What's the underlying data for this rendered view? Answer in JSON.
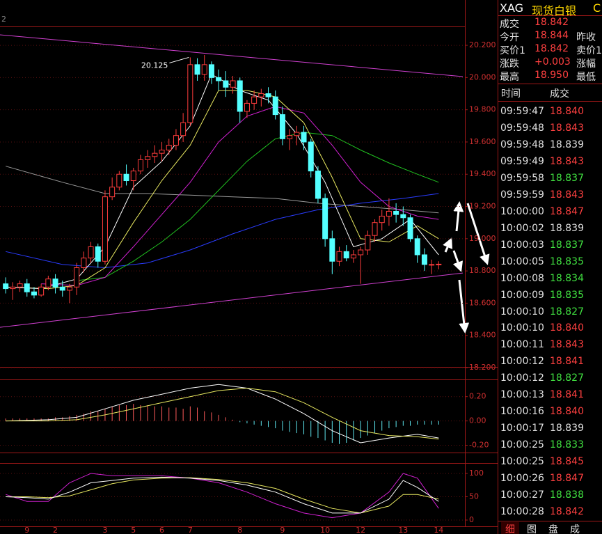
{
  "top_label": "2",
  "chart_data": [
    {
      "type": "candlestick",
      "xlim": [
        -0.8,
        64.4
      ],
      "ylim": [
        18.2,
        20.317
      ],
      "grid": true,
      "up_color": "#ff3c3c",
      "down_color": "#54ffff",
      "yticks": [
        {
          "value": 20.2,
          "label": "20.200"
        },
        {
          "value": 20.0,
          "label": "20.000"
        },
        {
          "value": 19.8,
          "label": "19.800"
        },
        {
          "value": 19.6,
          "label": "19.600"
        },
        {
          "value": 19.4,
          "label": "19.400"
        },
        {
          "value": 19.2,
          "label": "19.200"
        },
        {
          "value": 19.0,
          "label": "19.000"
        },
        {
          "value": 18.8,
          "label": "18.800"
        },
        {
          "value": 18.6,
          "label": "18.600"
        },
        {
          "value": 18.4,
          "label": "18.400"
        },
        {
          "value": 18.2,
          "label": "18.200"
        }
      ],
      "categories": [
        null,
        null,
        null,
        "9",
        null,
        null,
        null,
        "2",
        null,
        null,
        null,
        null,
        null,
        null,
        "3",
        null,
        null,
        null,
        "5",
        null,
        null,
        null,
        "6",
        null,
        null,
        null,
        "7",
        null,
        null,
        null,
        null,
        null,
        null,
        "8",
        null,
        null,
        null,
        null,
        null,
        "9",
        null,
        null,
        null,
        null,
        null,
        "10",
        null,
        null,
        null,
        null,
        "12",
        null,
        null,
        null,
        null,
        null,
        "13",
        null,
        null,
        null,
        null,
        "14"
      ],
      "open": [
        18.72,
        18.69,
        18.7,
        18.72,
        18.67,
        18.65,
        18.7,
        18.75,
        18.7,
        18.68,
        18.7,
        18.82,
        18.88,
        18.95,
        18.86,
        19.26,
        19.32,
        19.4,
        19.36,
        19.42,
        19.49,
        19.51,
        19.53,
        19.55,
        19.58,
        19.64,
        19.72,
        20.08,
        20.02,
        20.08,
        20.0,
        19.98,
        19.94,
        19.98,
        19.79,
        19.84,
        19.88,
        19.9,
        19.88,
        19.77,
        19.62,
        19.64,
        19.66,
        19.6,
        19.42,
        19.25,
        19.0,
        18.86,
        18.92,
        18.88,
        18.9,
        18.93,
        19.02,
        19.1,
        19.14,
        19.17,
        19.15,
        19.13,
        19.0,
        18.9,
        18.84,
        18.84
      ],
      "high": [
        18.76,
        18.73,
        18.74,
        18.75,
        18.7,
        18.72,
        18.77,
        18.78,
        18.74,
        18.72,
        18.85,
        18.92,
        18.98,
        18.97,
        19.3,
        19.38,
        19.42,
        19.46,
        19.44,
        19.52,
        19.55,
        19.58,
        19.6,
        19.62,
        19.68,
        19.78,
        20.125,
        20.12,
        20.14,
        20.1,
        20.05,
        20.04,
        20.01,
        20.0,
        19.86,
        19.92,
        19.93,
        19.94,
        19.92,
        19.82,
        19.68,
        19.7,
        19.7,
        19.62,
        19.45,
        19.28,
        19.05,
        18.95,
        18.96,
        18.93,
        18.95,
        19.05,
        19.12,
        19.18,
        19.25,
        19.22,
        19.2,
        19.15,
        19.02,
        18.94,
        18.87,
        18.86
      ],
      "low": [
        18.66,
        18.62,
        18.67,
        18.64,
        18.63,
        18.64,
        18.68,
        18.66,
        18.64,
        18.6,
        18.65,
        18.79,
        18.85,
        18.82,
        18.84,
        19.24,
        19.3,
        19.33,
        19.3,
        19.4,
        19.44,
        19.47,
        19.48,
        19.52,
        19.55,
        19.6,
        19.7,
        19.98,
        19.98,
        19.96,
        19.92,
        19.88,
        19.9,
        19.72,
        19.75,
        19.8,
        19.82,
        19.84,
        19.74,
        19.58,
        19.55,
        19.58,
        19.55,
        19.38,
        19.22,
        18.95,
        18.78,
        18.83,
        18.86,
        18.85,
        18.72,
        18.9,
        18.98,
        19.05,
        19.08,
        19.1,
        19.08,
        18.98,
        18.85,
        18.8,
        18.78,
        18.81
      ],
      "close": [
        18.69,
        18.7,
        18.72,
        18.67,
        18.65,
        18.7,
        18.75,
        18.7,
        18.68,
        18.7,
        18.82,
        18.88,
        18.95,
        18.86,
        19.26,
        19.32,
        19.4,
        19.36,
        19.42,
        19.49,
        19.51,
        19.53,
        19.55,
        19.58,
        19.64,
        19.72,
        20.08,
        20.02,
        20.08,
        20.0,
        19.98,
        19.94,
        19.98,
        19.79,
        19.84,
        19.88,
        19.9,
        19.88,
        19.77,
        19.62,
        19.64,
        19.66,
        19.6,
        19.42,
        19.25,
        19.0,
        18.86,
        18.92,
        18.88,
        18.9,
        18.93,
        19.02,
        19.1,
        19.14,
        19.17,
        19.15,
        19.13,
        19.0,
        18.9,
        18.84,
        18.84,
        18.842
      ],
      "annotations": [
        {
          "text": "20.125",
          "x": 26,
          "y": 20.125
        }
      ],
      "series": [
        {
          "color": "#d040d0",
          "x": [
            -0.8,
            64.4
          ],
          "values": [
            20.265,
            20.006
          ]
        },
        {
          "color": "#d040d0",
          "x": [
            -0.8,
            64.4
          ],
          "values": [
            18.45,
            18.787
          ]
        },
        {
          "color": "#9a9a9a",
          "x": [
            0,
            8,
            14,
            20,
            26,
            32,
            38,
            44,
            50,
            56,
            61
          ],
          "values": [
            19.45,
            19.35,
            19.28,
            19.28,
            19.27,
            19.26,
            19.25,
            19.22,
            19.2,
            19.18,
            19.16
          ]
        },
        {
          "color": "#2a3cff",
          "x": [
            0,
            8,
            14,
            20,
            26,
            32,
            38,
            44,
            50,
            56,
            61
          ],
          "values": [
            18.92,
            18.84,
            18.82,
            18.85,
            18.93,
            19.03,
            19.12,
            19.18,
            19.22,
            19.25,
            19.28
          ]
        },
        {
          "color": "#20c020",
          "x": [
            10,
            14,
            18,
            22,
            26,
            30,
            34,
            38,
            42,
            46,
            50,
            54,
            58,
            61
          ],
          "values": [
            18.74,
            18.76,
            18.86,
            18.98,
            19.12,
            19.3,
            19.48,
            19.62,
            19.66,
            19.64,
            19.55,
            19.47,
            19.4,
            19.35
          ]
        },
        {
          "color": "#d020d0",
          "x": [
            5,
            10,
            14,
            18,
            22,
            26,
            30,
            34,
            38,
            42,
            46,
            50,
            54,
            58,
            61
          ],
          "values": [
            18.72,
            18.71,
            18.76,
            18.95,
            19.15,
            19.35,
            19.6,
            19.76,
            19.82,
            19.78,
            19.58,
            19.35,
            19.2,
            19.14,
            19.12
          ]
        },
        {
          "color": "#e8e860",
          "x": [
            0,
            6,
            10,
            14,
            18,
            22,
            26,
            30,
            34,
            38,
            42,
            46,
            50,
            54,
            58,
            61
          ],
          "values": [
            18.7,
            18.69,
            18.71,
            18.82,
            19.1,
            19.36,
            19.58,
            19.92,
            19.92,
            19.88,
            19.72,
            19.38,
            19.0,
            18.98,
            19.08,
            19.0
          ]
        },
        {
          "color": "#ffffff",
          "x": [
            0,
            5,
            10,
            14,
            18,
            22,
            26,
            29,
            33,
            37,
            41,
            45,
            49,
            53,
            57,
            61
          ],
          "values": [
            18.7,
            18.69,
            18.75,
            18.95,
            19.32,
            19.48,
            19.7,
            20.02,
            19.92,
            19.86,
            19.65,
            19.35,
            18.95,
            19.0,
            19.12,
            18.9
          ]
        }
      ]
    },
    {
      "type": "bar",
      "xlim": [
        -0.8,
        64.4
      ],
      "ylim": [
        -0.26,
        0.33
      ],
      "grid": true,
      "up_color": "#ff5a5a",
      "down_color": "#5fe6ee",
      "yticks": [
        {
          "value": 0.2,
          "label": "0.20"
        },
        {
          "value": 0.0,
          "label": "0.00"
        },
        {
          "value": -0.2,
          "label": "-0.20"
        }
      ],
      "values": [
        0.02,
        0.02,
        0.02,
        0.02,
        0.02,
        0.02,
        0.02,
        0.03,
        0.03,
        0.04,
        0.05,
        0.06,
        0.08,
        0.08,
        0.1,
        0.12,
        0.13,
        0.13,
        0.14,
        0.13,
        0.13,
        0.12,
        0.12,
        0.11,
        0.11,
        0.1,
        0.12,
        0.11,
        0.08,
        0.07,
        0.05,
        0.03,
        0.01,
        -0.01,
        -0.02,
        -0.03,
        -0.04,
        -0.05,
        -0.06,
        -0.08,
        -0.09,
        -0.1,
        -0.11,
        -0.13,
        -0.14,
        -0.16,
        -0.18,
        -0.19,
        -0.18,
        -0.16,
        -0.14,
        -0.12,
        -0.1,
        -0.08,
        -0.06,
        -0.05,
        -0.04,
        -0.04,
        -0.03,
        -0.03,
        -0.03,
        -0.03
      ],
      "series": [
        {
          "color": "#ffffff",
          "x": [
            0,
            6,
            10,
            14,
            18,
            22,
            26,
            30,
            34,
            38,
            42,
            46,
            50,
            54,
            58,
            61
          ],
          "values": [
            0.0,
            0.01,
            0.03,
            0.1,
            0.17,
            0.22,
            0.27,
            0.3,
            0.27,
            0.18,
            0.06,
            -0.08,
            -0.18,
            -0.14,
            -0.11,
            -0.14
          ]
        },
        {
          "color": "#e8e860",
          "x": [
            0,
            6,
            10,
            14,
            18,
            22,
            26,
            30,
            34,
            38,
            42,
            46,
            50,
            54,
            58,
            61
          ],
          "values": [
            0.0,
            0.0,
            0.01,
            0.05,
            0.1,
            0.15,
            0.2,
            0.25,
            0.27,
            0.24,
            0.15,
            0.03,
            -0.08,
            -0.12,
            -0.13,
            -0.15
          ]
        }
      ]
    },
    {
      "type": "line",
      "xlim": [
        -0.8,
        64.4
      ],
      "ylim": [
        -12,
        118
      ],
      "grid": true,
      "yticks": [
        100,
        50,
        0
      ],
      "series": [
        {
          "color": "#d020d0",
          "x": [
            0,
            3,
            6,
            9,
            12,
            15,
            18,
            22,
            26,
            30,
            34,
            38,
            42,
            46,
            50,
            54,
            56,
            58,
            61
          ],
          "values": [
            55,
            40,
            40,
            80,
            100,
            95,
            95,
            95,
            90,
            80,
            60,
            35,
            15,
            5,
            15,
            60,
            100,
            90,
            25
          ]
        },
        {
          "color": "#e8e860",
          "x": [
            0,
            3,
            6,
            9,
            12,
            15,
            18,
            22,
            26,
            30,
            34,
            38,
            42,
            46,
            50,
            54,
            56,
            58,
            61
          ],
          "values": [
            50,
            50,
            48,
            52,
            65,
            78,
            86,
            90,
            91,
            87,
            80,
            68,
            45,
            25,
            15,
            30,
            55,
            55,
            45
          ]
        },
        {
          "color": "#ffffff",
          "x": [
            0,
            3,
            6,
            9,
            12,
            15,
            18,
            22,
            26,
            30,
            34,
            38,
            42,
            46,
            50,
            54,
            56,
            58,
            61
          ],
          "values": [
            50,
            48,
            45,
            60,
            80,
            85,
            90,
            92,
            90,
            85,
            75,
            60,
            35,
            15,
            15,
            45,
            85,
            70,
            40
          ]
        }
      ]
    }
  ],
  "quote_panel": {
    "symbol": "XAG",
    "name": "现货白银",
    "tail": "C",
    "rows": [
      {
        "label": "成交",
        "value": "18.842"
      },
      {
        "label": "今开",
        "value": "18.844",
        "label2": "昨收"
      },
      {
        "label": "买价1",
        "value": "18.842",
        "label2": "卖价1"
      },
      {
        "label": "涨跌",
        "value": "+0.003",
        "label2": "涨幅"
      },
      {
        "label": "最高",
        "value": "18.950",
        "label2": "最低"
      }
    ],
    "columns": [
      "时间",
      "成交"
    ],
    "trades": [
      {
        "time": "09:59:47",
        "price": "18.840",
        "color": "#ff4040"
      },
      {
        "time": "09:59:48",
        "price": "18.843",
        "color": "#ff4040"
      },
      {
        "time": "09:59:48",
        "price": "18.839",
        "color": "#e0e0e0"
      },
      {
        "time": "09:59:49",
        "price": "18.843",
        "color": "#ff4040"
      },
      {
        "time": "09:59:58",
        "price": "18.837",
        "color": "#40e040"
      },
      {
        "time": "09:59:59",
        "price": "18.843",
        "color": "#ff4040"
      },
      {
        "time": "10:00:00",
        "price": "18.847",
        "color": "#ff4040"
      },
      {
        "time": "10:00:02",
        "price": "18.839",
        "color": "#e0e0e0"
      },
      {
        "time": "10:00:03",
        "price": "18.837",
        "color": "#40e040"
      },
      {
        "time": "10:00:05",
        "price": "18.835",
        "color": "#40e040"
      },
      {
        "time": "10:00:08",
        "price": "18.834",
        "color": "#40e040"
      },
      {
        "time": "10:00:09",
        "price": "18.835",
        "color": "#40e040"
      },
      {
        "time": "10:00:10",
        "price": "18.827",
        "color": "#40e040"
      },
      {
        "time": "10:00:10",
        "price": "18.840",
        "color": "#ff4040"
      },
      {
        "time": "10:00:11",
        "price": "18.843",
        "color": "#ff4040"
      },
      {
        "time": "10:00:12",
        "price": "18.841",
        "color": "#ff4040"
      },
      {
        "time": "10:00:12",
        "price": "18.827",
        "color": "#40e040"
      },
      {
        "time": "10:00:13",
        "price": "18.841",
        "color": "#ff4040"
      },
      {
        "time": "10:00:16",
        "price": "18.840",
        "color": "#ff4040"
      },
      {
        "time": "10:00:17",
        "price": "18.839",
        "color": "#e0e0e0"
      },
      {
        "time": "10:00:25",
        "price": "18.833",
        "color": "#40e040"
      },
      {
        "time": "10:00:25",
        "price": "18.845",
        "color": "#ff4040"
      },
      {
        "time": "10:00:26",
        "price": "18.847",
        "color": "#ff4040"
      },
      {
        "time": "10:00:27",
        "price": "18.838",
        "color": "#40e040"
      },
      {
        "time": "10:00:28",
        "price": "18.842",
        "color": "#ff4040"
      }
    ],
    "tabs": [
      "细",
      "图",
      "盘",
      "成"
    ]
  }
}
